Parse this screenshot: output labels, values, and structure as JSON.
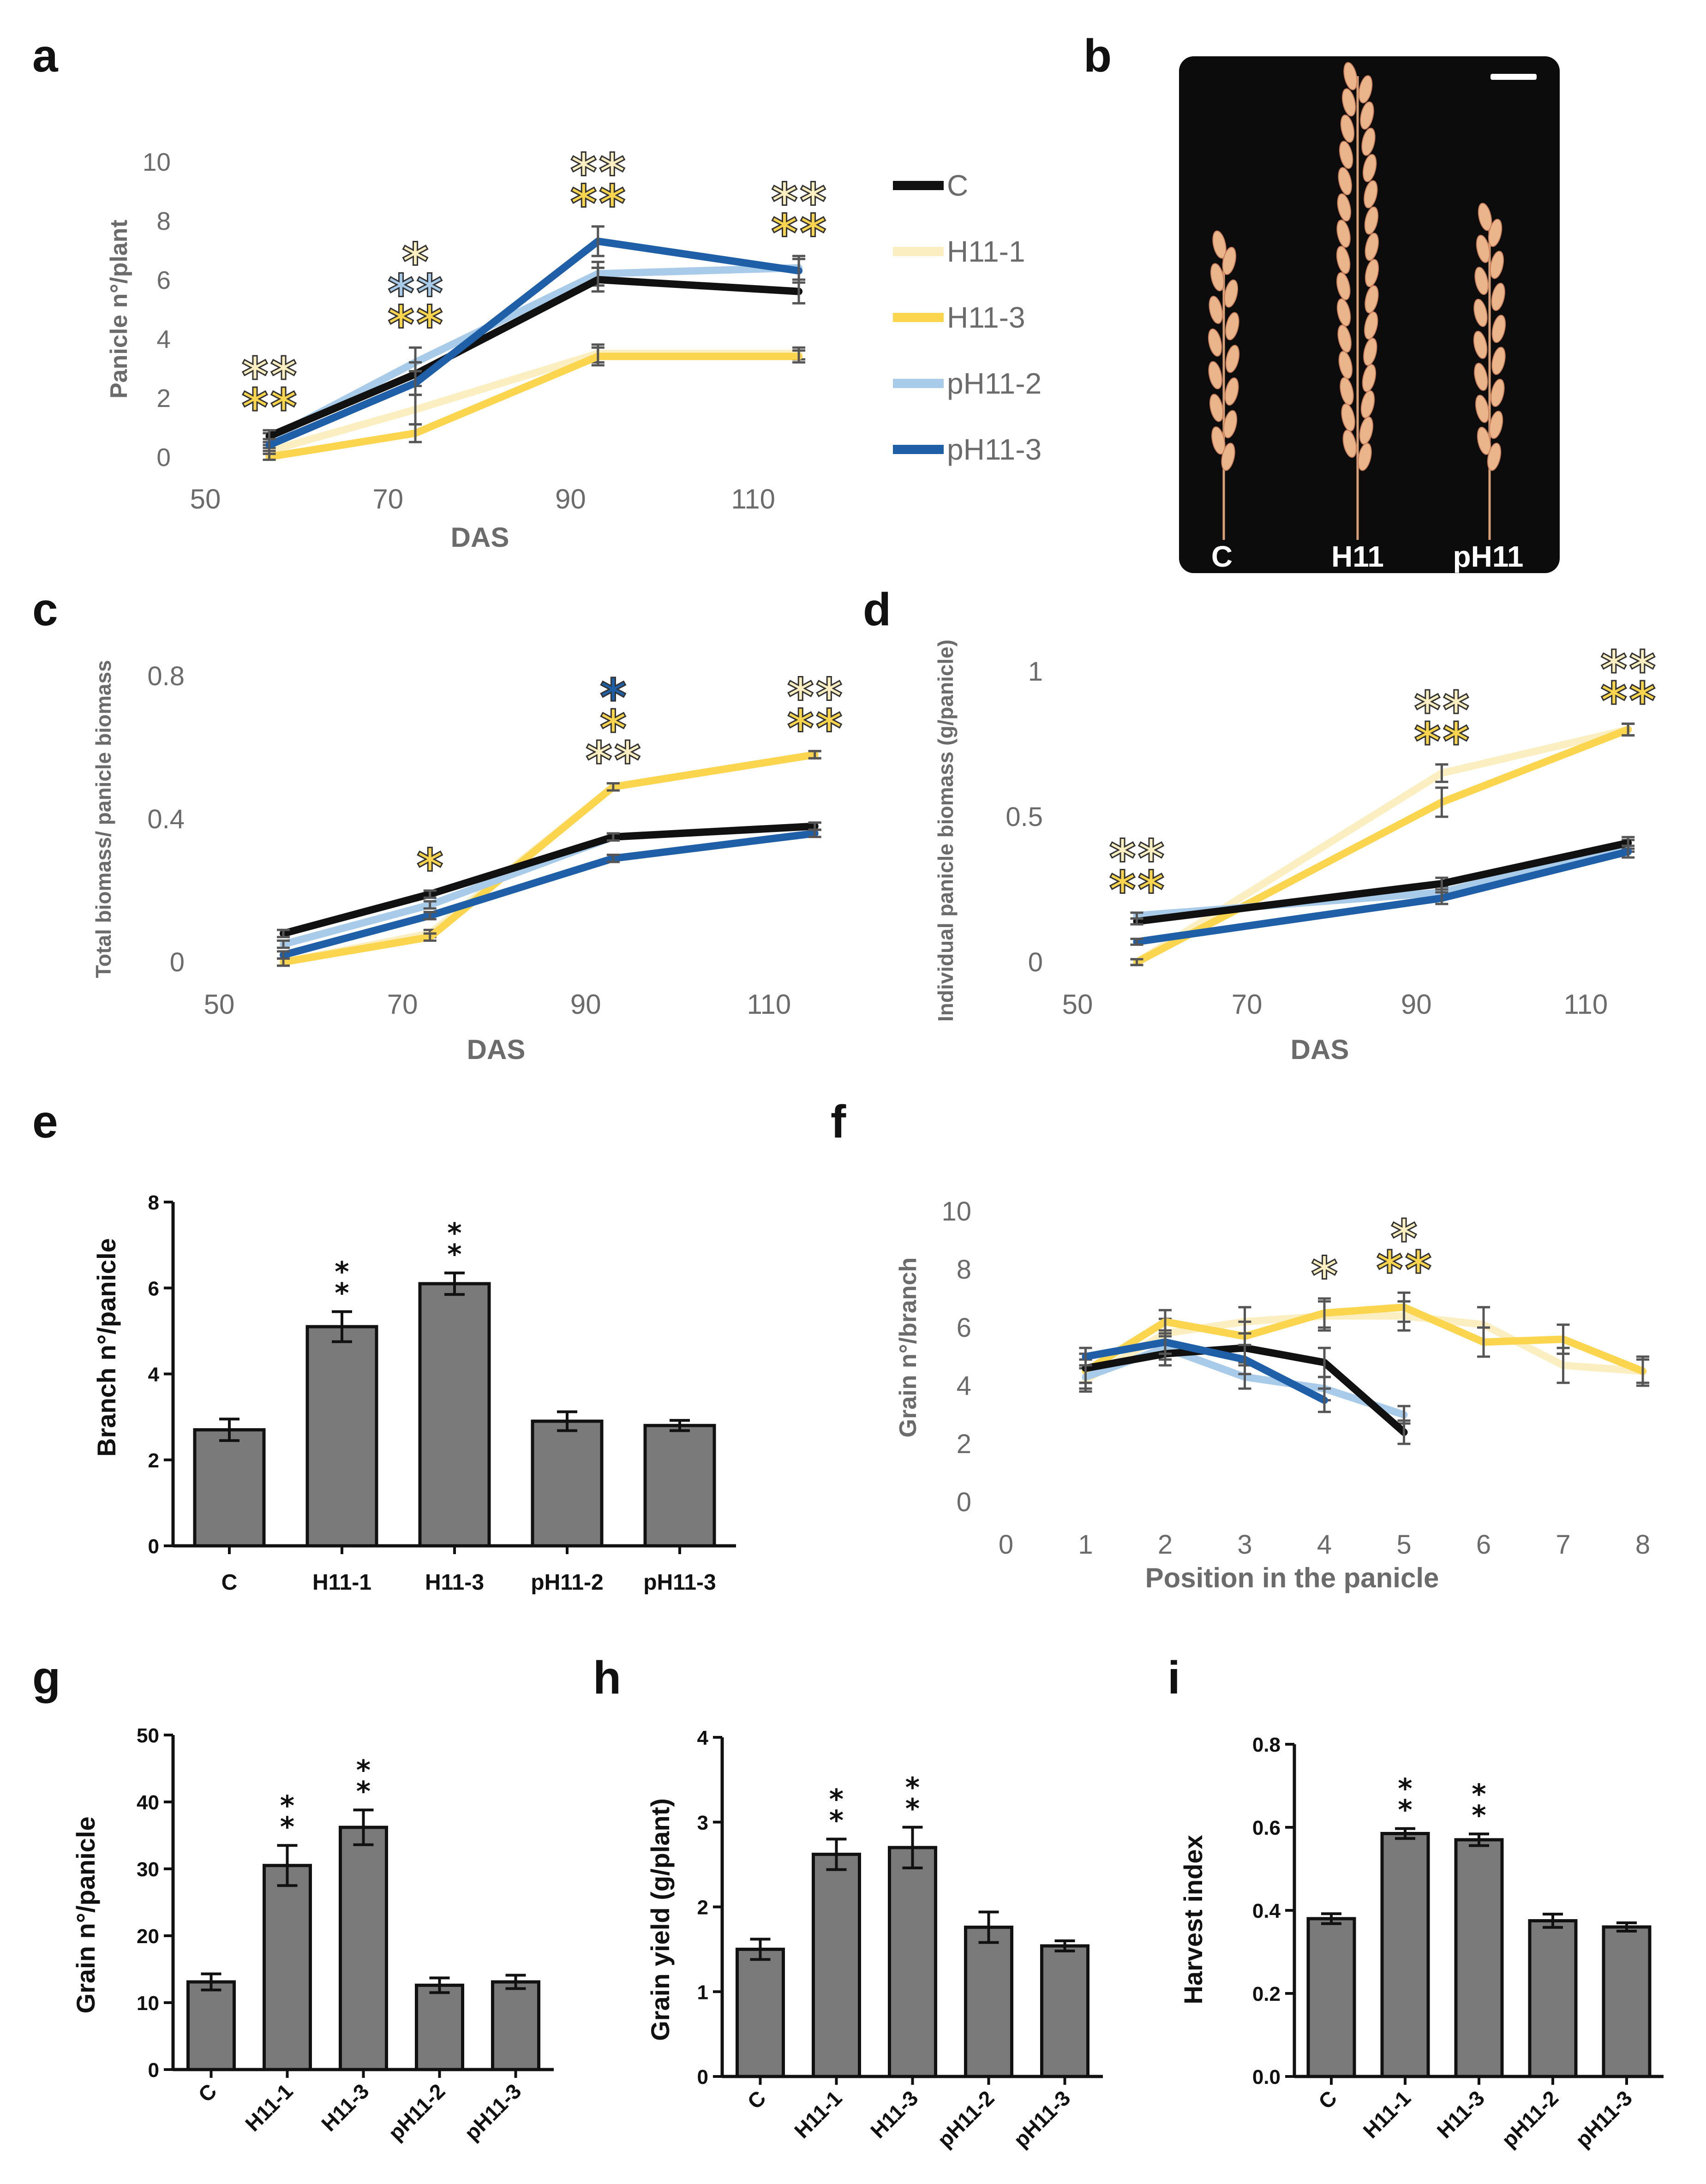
{
  "colors": {
    "C": "#111111",
    "H11-1": "#fbeec0",
    "H11-3": "#fbd54e",
    "pH11-2": "#a8cbea",
    "pH11-3": "#1f5fa8",
    "axis_text": "#6b6b6b",
    "bar": "#7a7a7a",
    "err": "#666666"
  },
  "panel_labels": {
    "a": "a",
    "b": "b",
    "c": "c",
    "d": "d",
    "e": "e",
    "f": "f",
    "g": "g",
    "h": "h",
    "i": "i"
  },
  "legend": {
    "items": [
      {
        "name": "C",
        "color": "#111111"
      },
      {
        "name": "H11-1",
        "color": "#fbeec0"
      },
      {
        "name": "H11-3",
        "color": "#fbd54e"
      },
      {
        "name": "pH11-2",
        "color": "#a8cbea"
      },
      {
        "name": "pH11-3",
        "color": "#1f5fa8"
      }
    ]
  },
  "photo": {
    "labels": [
      "C",
      "H11",
      "pH11"
    ]
  },
  "chart_data": [
    {
      "panel": "a",
      "type": "line",
      "xlabel": "DAS",
      "ylabel": "Panicle n°/plant",
      "xlim": [
        50,
        120
      ],
      "ylim": [
        0,
        10
      ],
      "xticks": [
        50,
        70,
        90,
        110
      ],
      "yticks": [
        0,
        2,
        4,
        6,
        8,
        10
      ],
      "x": [
        57,
        73,
        93,
        115
      ],
      "series": [
        {
          "name": "C",
          "values": [
            0.7,
            2.8,
            6.0,
            5.6
          ],
          "errors": [
            0.2,
            0.4,
            0.4,
            0.4
          ]
        },
        {
          "name": "H11-1",
          "values": [
            0.2,
            1.6,
            3.5,
            3.5
          ],
          "errors": [
            0.1,
            0.5,
            0.3,
            0.2
          ]
        },
        {
          "name": "H11-3",
          "values": [
            0.0,
            0.8,
            3.4,
            3.4
          ],
          "errors": [
            0.1,
            0.3,
            0.3,
            0.2
          ]
        },
        {
          "name": "pH11-2",
          "values": [
            0.6,
            3.2,
            6.2,
            6.4
          ],
          "errors": [
            0.2,
            0.5,
            0.4,
            0.4
          ]
        },
        {
          "name": "pH11-3",
          "values": [
            0.4,
            2.5,
            7.3,
            6.3
          ],
          "errors": [
            0.2,
            0.4,
            0.5,
            0.4
          ]
        }
      ],
      "annotations": [
        {
          "x": 57,
          "stars": [
            [
              "H11-1",
              "H11-1"
            ],
            [
              "H11-3",
              "H11-3"
            ]
          ]
        },
        {
          "x": 73,
          "stars": [
            [
              "H11-1"
            ],
            [
              "pH11-2",
              "pH11-2"
            ],
            [
              "H11-3",
              "H11-3"
            ]
          ]
        },
        {
          "x": 93,
          "stars": [
            [
              "H11-1",
              "H11-1"
            ],
            [
              "H11-3",
              "H11-3"
            ]
          ]
        },
        {
          "x": 115,
          "stars": [
            [
              "H11-1",
              "H11-1"
            ],
            [
              "H11-3",
              "H11-3"
            ]
          ]
        }
      ]
    },
    {
      "panel": "c",
      "type": "line",
      "xlabel": "DAS",
      "ylabel": "Total biomass/ panicle biomass",
      "xlim": [
        50,
        120
      ],
      "ylim": [
        0,
        0.8
      ],
      "xticks": [
        50,
        70,
        90,
        110
      ],
      "yticks": [
        0,
        0.4,
        0.8
      ],
      "x": [
        57,
        73,
        93,
        115
      ],
      "series": [
        {
          "name": "C",
          "values": [
            0.08,
            0.19,
            0.35,
            0.38
          ],
          "errors": [
            0.01,
            0.01,
            0.01,
            0.01
          ]
        },
        {
          "name": "H11-1",
          "values": [
            0.0,
            0.08,
            0.49,
            0.58
          ],
          "errors": [
            0.01,
            0.01,
            0.01,
            0.01
          ]
        },
        {
          "name": "H11-3",
          "values": [
            0.0,
            0.07,
            0.49,
            0.58
          ],
          "errors": [
            0.01,
            0.01,
            0.01,
            0.01
          ]
        },
        {
          "name": "pH11-2",
          "values": [
            0.05,
            0.16,
            0.35,
            0.38
          ],
          "errors": [
            0.01,
            0.01,
            0.01,
            0.01
          ]
        },
        {
          "name": "pH11-3",
          "values": [
            0.02,
            0.13,
            0.29,
            0.36
          ],
          "errors": [
            0.01,
            0.01,
            0.01,
            0.01
          ]
        }
      ],
      "annotations": [
        {
          "x": 73,
          "stars": [
            [
              "H11-3"
            ]
          ]
        },
        {
          "x": 93,
          "stars": [
            [
              "pH11-3"
            ],
            [
              "H11-3"
            ],
            [
              "H11-1",
              "H11-1"
            ]
          ]
        },
        {
          "x": 115,
          "stars": [
            [
              "H11-1",
              "H11-1"
            ],
            [
              "H11-3",
              "H11-3"
            ]
          ]
        }
      ]
    },
    {
      "panel": "d",
      "type": "line",
      "xlabel": "DAS",
      "ylabel": "Individual panicle biomass (g/panicle)",
      "xlim": [
        50,
        120
      ],
      "ylim": [
        0,
        1
      ],
      "xticks": [
        50,
        70,
        90,
        110
      ],
      "yticks": [
        0,
        0.5,
        1
      ],
      "x": [
        57,
        93,
        115
      ],
      "series": [
        {
          "name": "C",
          "values": [
            0.14,
            0.27,
            0.41
          ],
          "errors": [
            0.01,
            0.02,
            0.02
          ]
        },
        {
          "name": "H11-1",
          "values": [
            0.0,
            0.65,
            0.8
          ],
          "errors": [
            0.01,
            0.03,
            0.02
          ]
        },
        {
          "name": "H11-3",
          "values": [
            0.0,
            0.55,
            0.8
          ],
          "errors": [
            0.01,
            0.05,
            0.02
          ]
        },
        {
          "name": "pH11-2",
          "values": [
            0.16,
            0.24,
            0.4
          ],
          "errors": [
            0.01,
            0.02,
            0.02
          ]
        },
        {
          "name": "pH11-3",
          "values": [
            0.07,
            0.22,
            0.38
          ],
          "errors": [
            0.01,
            0.02,
            0.02
          ]
        }
      ],
      "annotations": [
        {
          "x": 57,
          "stars": [
            [
              "H11-1",
              "H11-1"
            ],
            [
              "H11-3",
              "H11-3"
            ]
          ]
        },
        {
          "x": 93,
          "stars": [
            [
              "H11-1",
              "H11-1"
            ],
            [
              "H11-3",
              "H11-3"
            ]
          ]
        },
        {
          "x": 115,
          "stars": [
            [
              "H11-1",
              "H11-1"
            ],
            [
              "H11-3",
              "H11-3"
            ]
          ]
        }
      ]
    },
    {
      "panel": "e",
      "type": "bar",
      "ylabel": "Branch n°/panicle",
      "categories": [
        "C",
        "H11-1",
        "H11-3",
        "pH11-2",
        "pH11-3"
      ],
      "values": [
        2.7,
        5.1,
        6.1,
        2.9,
        2.8
      ],
      "errors": [
        0.25,
        0.35,
        0.25,
        0.22,
        0.12
      ],
      "significance": [
        "",
        "**",
        "**",
        "",
        ""
      ],
      "ylim": [
        0,
        8
      ],
      "yticks": [
        0,
        2,
        4,
        6,
        8
      ]
    },
    {
      "panel": "f",
      "type": "line",
      "xlabel": "Position in the panicle",
      "ylabel": "Grain n°/branch",
      "xlim": [
        0,
        8
      ],
      "ylim": [
        0,
        10
      ],
      "xticks": [
        0,
        1,
        2,
        3,
        4,
        5,
        6,
        7,
        8
      ],
      "yticks": [
        0,
        2,
        4,
        6,
        8,
        10
      ],
      "series": [
        {
          "name": "C",
          "x": [
            1,
            2,
            3,
            4,
            5
          ],
          "values": [
            4.6,
            5.1,
            5.3,
            4.8,
            2.4
          ],
          "errors": [
            0.5,
            0.4,
            0.5,
            0.5,
            0.4
          ]
        },
        {
          "name": "H11-1",
          "x": [
            1,
            2,
            3,
            4,
            5,
            6,
            7,
            8
          ],
          "values": [
            4.2,
            5.8,
            6.2,
            6.4,
            6.4,
            6.1,
            4.7,
            4.5
          ],
          "errors": [
            0.4,
            0.5,
            0.5,
            0.5,
            0.5,
            0.6,
            0.6,
            0.5
          ]
        },
        {
          "name": "H11-3",
          "x": [
            1,
            2,
            3,
            4,
            5,
            6,
            7,
            8
          ],
          "values": [
            4.5,
            6.2,
            5.7,
            6.5,
            6.7,
            5.5,
            5.6,
            4.5
          ],
          "errors": [
            0.4,
            0.4,
            0.5,
            0.5,
            0.5,
            0.5,
            0.5,
            0.4
          ]
        },
        {
          "name": "pH11-2",
          "x": [
            1,
            2,
            3,
            4,
            5
          ],
          "values": [
            4.3,
            5.3,
            4.3,
            3.9,
            3.0
          ],
          "errors": [
            0.4,
            0.4,
            0.4,
            0.4,
            0.3
          ]
        },
        {
          "name": "pH11-3",
          "x": [
            1,
            2,
            3,
            4
          ],
          "values": [
            5.0,
            5.5,
            4.9,
            3.5
          ],
          "errors": [
            0.3,
            0.4,
            0.5,
            0.4
          ]
        }
      ],
      "annotations": [
        {
          "x": 4,
          "stars": [
            [
              "H11-1"
            ]
          ]
        },
        {
          "x": 5,
          "stars": [
            [
              "H11-1"
            ],
            [
              "H11-3",
              "H11-3"
            ]
          ]
        }
      ]
    },
    {
      "panel": "g",
      "type": "bar",
      "ylabel": "Grain n°/panicle",
      "categories": [
        "C",
        "H11-1",
        "H11-3",
        "pH11-2",
        "pH11-3"
      ],
      "values": [
        13.1,
        30.5,
        36.2,
        12.6,
        13.1
      ],
      "errors": [
        1.2,
        3.0,
        2.6,
        1.1,
        1.0
      ],
      "significance": [
        "",
        "**",
        "**",
        "",
        ""
      ],
      "ylim": [
        0,
        50
      ],
      "yticks": [
        0,
        10,
        20,
        30,
        40,
        50
      ]
    },
    {
      "panel": "h",
      "type": "bar",
      "ylabel": "Grain yield (g/plant)",
      "categories": [
        "C",
        "H11-1",
        "H11-3",
        "pH11-2",
        "pH11-3"
      ],
      "values": [
        1.5,
        2.62,
        2.7,
        1.76,
        1.54
      ],
      "errors": [
        0.12,
        0.18,
        0.24,
        0.18,
        0.06
      ],
      "significance": [
        "",
        "**",
        "**",
        "",
        ""
      ],
      "ylim": [
        0,
        4
      ],
      "yticks": [
        0,
        1,
        2,
        3,
        4
      ]
    },
    {
      "panel": "i",
      "type": "bar",
      "ylabel": "Harvest index",
      "categories": [
        "C",
        "H11-1",
        "H11-3",
        "pH11-2",
        "pH11-3"
      ],
      "values": [
        0.38,
        0.585,
        0.57,
        0.375,
        0.36
      ],
      "errors": [
        0.012,
        0.012,
        0.014,
        0.016,
        0.01
      ],
      "significance": [
        "",
        "**",
        "**",
        "",
        ""
      ],
      "ylim": [
        0,
        0.8
      ],
      "yticks": [
        "0.0",
        "0.2",
        "0.4",
        "0.6",
        "0.8"
      ]
    }
  ]
}
